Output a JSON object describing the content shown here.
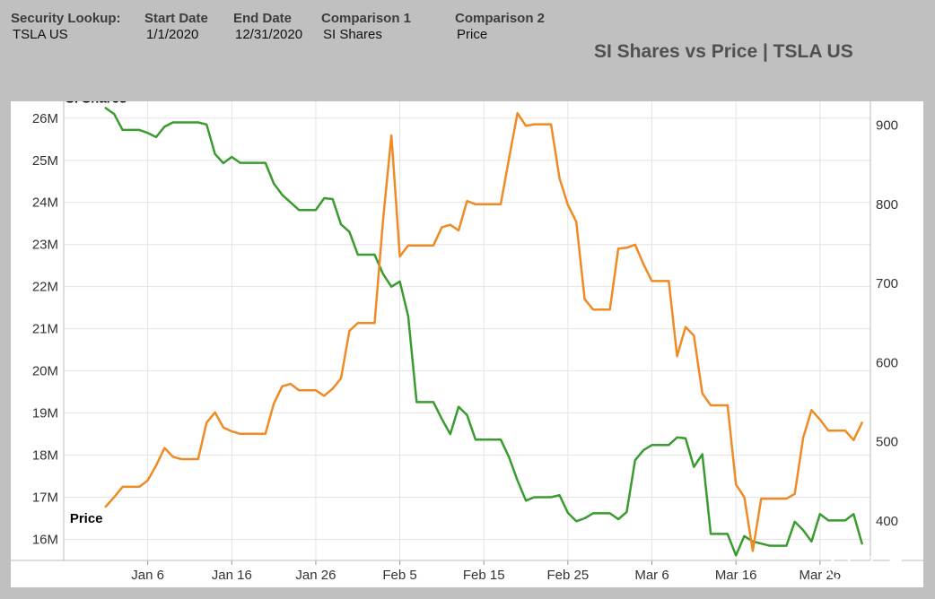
{
  "header": {
    "security_lookup": {
      "label": "Security Lookup:",
      "value": "TSLA US"
    },
    "start_date": {
      "label": "Start Date",
      "value": "1/1/2020"
    },
    "end_date": {
      "label": "End Date",
      "value": "12/31/2020"
    },
    "comparison1": {
      "label": "Comparison 1",
      "value": "SI Shares"
    },
    "comparison2": {
      "label": "Comparison 2",
      "value": "Price"
    }
  },
  "title": "SI Shares vs Price | TSLA US",
  "watermark": "孟浩",
  "colors": {
    "si_shares": "#3a9b2f",
    "price": "#f08a24",
    "grid": "#e4e4e4",
    "axis_text": "#333333",
    "background": "#c0c0c0"
  },
  "chart_data": {
    "type": "line",
    "title": "SI Shares vs Price | TSLA US",
    "x_axis": {
      "type": "date",
      "range": [
        "2019-12-27",
        "2020-04-01"
      ],
      "tick_labels": [
        "Jan 6",
        "Jan 16",
        "Jan 26",
        "Feb 5",
        "Feb 15",
        "Feb 25",
        "Mar 6",
        "Mar 16",
        "Mar 26"
      ],
      "tick_dates": [
        "2020-01-06",
        "2020-01-16",
        "2020-01-26",
        "2020-02-05",
        "2020-02-15",
        "2020-02-25",
        "2020-03-06",
        "2020-03-16",
        "2020-03-26"
      ]
    },
    "y_left": {
      "range": [
        15.5,
        26.4
      ],
      "tick_values": [
        16,
        17,
        18,
        19,
        20,
        21,
        22,
        23,
        24,
        25,
        26
      ],
      "tick_labels": [
        "16M",
        "17M",
        "18M",
        "19M",
        "20M",
        "21M",
        "22M",
        "23M",
        "24M",
        "25M",
        "26M"
      ]
    },
    "y_right": {
      "range": [
        350,
        930
      ],
      "tick_values": [
        400,
        500,
        600,
        700,
        800,
        900
      ],
      "tick_labels": [
        "400",
        "500",
        "600",
        "700",
        "800",
        "900"
      ]
    },
    "grid": true,
    "series": [
      {
        "name": "SI Shares",
        "axis": "left",
        "points": [
          [
            "2020-01-01",
            26.24
          ],
          [
            "2020-01-02",
            26.1
          ],
          [
            "2020-01-03",
            25.72
          ],
          [
            "2020-01-04",
            25.72
          ],
          [
            "2020-01-05",
            25.72
          ],
          [
            "2020-01-06",
            25.65
          ],
          [
            "2020-01-07",
            25.55
          ],
          [
            "2020-01-08",
            25.8
          ],
          [
            "2020-01-09",
            25.9
          ],
          [
            "2020-01-10",
            25.9
          ],
          [
            "2020-01-11",
            25.9
          ],
          [
            "2020-01-12",
            25.9
          ],
          [
            "2020-01-13",
            25.85
          ],
          [
            "2020-01-14",
            25.15
          ],
          [
            "2020-01-15",
            24.93
          ],
          [
            "2020-01-16",
            25.08
          ],
          [
            "2020-01-17",
            24.94
          ],
          [
            "2020-01-18",
            24.94
          ],
          [
            "2020-01-19",
            24.94
          ],
          [
            "2020-01-20",
            24.94
          ],
          [
            "2020-01-21",
            24.45
          ],
          [
            "2020-01-22",
            24.18
          ],
          [
            "2020-01-23",
            24.0
          ],
          [
            "2020-01-24",
            23.82
          ],
          [
            "2020-01-25",
            23.82
          ],
          [
            "2020-01-26",
            23.82
          ],
          [
            "2020-01-27",
            24.1
          ],
          [
            "2020-01-28",
            24.08
          ],
          [
            "2020-01-29",
            23.48
          ],
          [
            "2020-01-30",
            23.3
          ],
          [
            "2020-01-31",
            22.76
          ],
          [
            "2020-02-01",
            22.76
          ],
          [
            "2020-02-02",
            22.76
          ],
          [
            "2020-02-03",
            22.3
          ],
          [
            "2020-02-04",
            22.0
          ],
          [
            "2020-02-05",
            22.12
          ],
          [
            "2020-02-06",
            21.3
          ],
          [
            "2020-02-07",
            19.26
          ],
          [
            "2020-02-08",
            19.26
          ],
          [
            "2020-02-09",
            19.26
          ],
          [
            "2020-02-10",
            18.86
          ],
          [
            "2020-02-11",
            18.5
          ],
          [
            "2020-02-12",
            19.15
          ],
          [
            "2020-02-13",
            18.95
          ],
          [
            "2020-02-14",
            18.37
          ],
          [
            "2020-02-15",
            18.37
          ],
          [
            "2020-02-16",
            18.37
          ],
          [
            "2020-02-17",
            18.37
          ],
          [
            "2020-02-18",
            17.95
          ],
          [
            "2020-02-19",
            17.4
          ],
          [
            "2020-02-20",
            16.92
          ],
          [
            "2020-02-21",
            17.0
          ],
          [
            "2020-02-22",
            17.0
          ],
          [
            "2020-02-23",
            17.0
          ],
          [
            "2020-02-24",
            17.05
          ],
          [
            "2020-02-25",
            16.63
          ],
          [
            "2020-02-26",
            16.43
          ],
          [
            "2020-02-27",
            16.5
          ],
          [
            "2020-02-28",
            16.62
          ],
          [
            "2020-02-29",
            16.62
          ],
          [
            "2020-03-01",
            16.62
          ],
          [
            "2020-03-02",
            16.48
          ],
          [
            "2020-03-03",
            16.65
          ],
          [
            "2020-03-04",
            17.88
          ],
          [
            "2020-03-05",
            18.12
          ],
          [
            "2020-03-06",
            18.24
          ],
          [
            "2020-03-07",
            18.24
          ],
          [
            "2020-03-08",
            18.24
          ],
          [
            "2020-03-09",
            18.42
          ],
          [
            "2020-03-10",
            18.4
          ],
          [
            "2020-03-11",
            17.72
          ],
          [
            "2020-03-12",
            18.02
          ],
          [
            "2020-03-13",
            16.13
          ],
          [
            "2020-03-14",
            16.13
          ],
          [
            "2020-03-15",
            16.13
          ],
          [
            "2020-03-16",
            15.62
          ],
          [
            "2020-03-17",
            16.08
          ],
          [
            "2020-03-18",
            15.95
          ],
          [
            "2020-03-19",
            15.9
          ],
          [
            "2020-03-20",
            15.85
          ],
          [
            "2020-03-21",
            15.85
          ],
          [
            "2020-03-22",
            15.85
          ],
          [
            "2020-03-23",
            16.42
          ],
          [
            "2020-03-24",
            16.22
          ],
          [
            "2020-03-25",
            15.95
          ],
          [
            "2020-03-26",
            16.6
          ],
          [
            "2020-03-27",
            16.45
          ],
          [
            "2020-03-28",
            16.45
          ],
          [
            "2020-03-29",
            16.45
          ],
          [
            "2020-03-30",
            16.6
          ],
          [
            "2020-03-31",
            15.9
          ]
        ]
      },
      {
        "name": "Price",
        "axis": "right",
        "points": [
          [
            "2020-01-01",
            418
          ],
          [
            "2020-01-02",
            430
          ],
          [
            "2020-01-03",
            443
          ],
          [
            "2020-01-04",
            443
          ],
          [
            "2020-01-05",
            443
          ],
          [
            "2020-01-06",
            451
          ],
          [
            "2020-01-07",
            470
          ],
          [
            "2020-01-08",
            492
          ],
          [
            "2020-01-09",
            481
          ],
          [
            "2020-01-10",
            478
          ],
          [
            "2020-01-11",
            478
          ],
          [
            "2020-01-12",
            478
          ],
          [
            "2020-01-13",
            524
          ],
          [
            "2020-01-14",
            537
          ],
          [
            "2020-01-15",
            518
          ],
          [
            "2020-01-16",
            513
          ],
          [
            "2020-01-17",
            510
          ],
          [
            "2020-01-18",
            510
          ],
          [
            "2020-01-19",
            510
          ],
          [
            "2020-01-20",
            510
          ],
          [
            "2020-01-21",
            548
          ],
          [
            "2020-01-22",
            570
          ],
          [
            "2020-01-23",
            573
          ],
          [
            "2020-01-24",
            565
          ],
          [
            "2020-01-25",
            565
          ],
          [
            "2020-01-26",
            565
          ],
          [
            "2020-01-27",
            558
          ],
          [
            "2020-01-28",
            567
          ],
          [
            "2020-01-29",
            580
          ],
          [
            "2020-01-30",
            640
          ],
          [
            "2020-01-31",
            650
          ],
          [
            "2020-02-01",
            650
          ],
          [
            "2020-02-02",
            650
          ],
          [
            "2020-02-03",
            780
          ],
          [
            "2020-02-04",
            887
          ],
          [
            "2020-02-05",
            734
          ],
          [
            "2020-02-06",
            748
          ],
          [
            "2020-02-07",
            748
          ],
          [
            "2020-02-08",
            748
          ],
          [
            "2020-02-09",
            748
          ],
          [
            "2020-02-10",
            771
          ],
          [
            "2020-02-11",
            774
          ],
          [
            "2020-02-12",
            767
          ],
          [
            "2020-02-13",
            804
          ],
          [
            "2020-02-14",
            800
          ],
          [
            "2020-02-15",
            800
          ],
          [
            "2020-02-16",
            800
          ],
          [
            "2020-02-17",
            800
          ],
          [
            "2020-02-18",
            858
          ],
          [
            "2020-02-19",
            915
          ],
          [
            "2020-02-20",
            899
          ],
          [
            "2020-02-21",
            901
          ],
          [
            "2020-02-22",
            901
          ],
          [
            "2020-02-23",
            901
          ],
          [
            "2020-02-24",
            833
          ],
          [
            "2020-02-25",
            799
          ],
          [
            "2020-02-26",
            778
          ],
          [
            "2020-02-27",
            680
          ],
          [
            "2020-02-28",
            667
          ],
          [
            "2020-02-29",
            667
          ],
          [
            "2020-03-01",
            667
          ],
          [
            "2020-03-02",
            744
          ],
          [
            "2020-03-03",
            745
          ],
          [
            "2020-03-04",
            749
          ],
          [
            "2020-03-05",
            724
          ],
          [
            "2020-03-06",
            703
          ],
          [
            "2020-03-07",
            703
          ],
          [
            "2020-03-08",
            703
          ],
          [
            "2020-03-09",
            608
          ],
          [
            "2020-03-10",
            645
          ],
          [
            "2020-03-11",
            634
          ],
          [
            "2020-03-12",
            561
          ],
          [
            "2020-03-13",
            546
          ],
          [
            "2020-03-14",
            546
          ],
          [
            "2020-03-15",
            546
          ],
          [
            "2020-03-16",
            446
          ],
          [
            "2020-03-17",
            430
          ],
          [
            "2020-03-18",
            362
          ],
          [
            "2020-03-19",
            428
          ],
          [
            "2020-03-20",
            428
          ],
          [
            "2020-03-21",
            428
          ],
          [
            "2020-03-22",
            428
          ],
          [
            "2020-03-23",
            434
          ],
          [
            "2020-03-24",
            505
          ],
          [
            "2020-03-25",
            540
          ],
          [
            "2020-03-26",
            528
          ],
          [
            "2020-03-27",
            514
          ],
          [
            "2020-03-28",
            514
          ],
          [
            "2020-03-29",
            514
          ],
          [
            "2020-03-30",
            502
          ],
          [
            "2020-03-31",
            524
          ]
        ]
      }
    ],
    "series_labels": [
      "SI Shares",
      "Price"
    ]
  }
}
